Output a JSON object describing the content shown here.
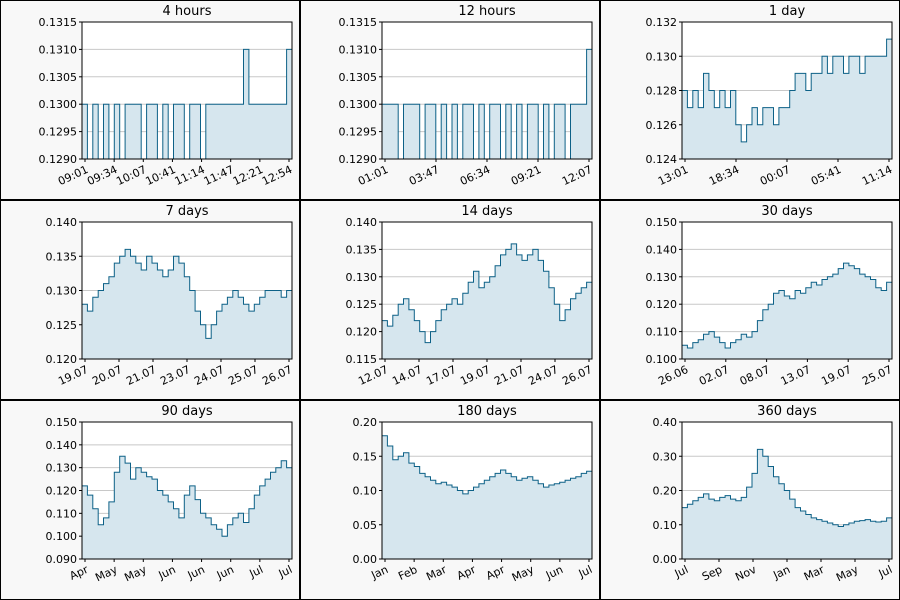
{
  "chart_data": [
    {
      "type": "area",
      "title": "4 hours",
      "ylim": [
        0.129,
        0.1315
      ],
      "yticks": [
        "0.1290",
        "0.1295",
        "0.1300",
        "0.1305",
        "0.1310",
        "0.1315"
      ],
      "xticks": [
        "09:01",
        "09:34",
        "10:07",
        "10:41",
        "11:14",
        "11:47",
        "12:21",
        "12:54"
      ],
      "values": [
        0.13,
        0.129,
        0.13,
        0.129,
        0.13,
        0.129,
        0.13,
        0.129,
        0.13,
        0.13,
        0.13,
        0.129,
        0.13,
        0.13,
        0.129,
        0.13,
        0.129,
        0.13,
        0.13,
        0.129,
        0.13,
        0.13,
        0.129,
        0.13,
        0.13,
        0.13,
        0.13,
        0.13,
        0.13,
        0.13,
        0.131,
        0.13,
        0.13,
        0.13,
        0.13,
        0.13,
        0.13,
        0.13,
        0.131,
        0.131
      ]
    },
    {
      "type": "area",
      "title": "12 hours",
      "ylim": [
        0.129,
        0.1315
      ],
      "yticks": [
        "0.1290",
        "0.1295",
        "0.1300",
        "0.1305",
        "0.1310",
        "0.1315"
      ],
      "xticks": [
        "01:01",
        "03:47",
        "06:34",
        "09:21",
        "12:07"
      ],
      "values": [
        0.13,
        0.13,
        0.13,
        0.129,
        0.13,
        0.13,
        0.13,
        0.129,
        0.13,
        0.13,
        0.129,
        0.13,
        0.129,
        0.13,
        0.129,
        0.13,
        0.13,
        0.129,
        0.13,
        0.129,
        0.13,
        0.13,
        0.129,
        0.13,
        0.129,
        0.13,
        0.129,
        0.13,
        0.13,
        0.129,
        0.13,
        0.129,
        0.13,
        0.13,
        0.129,
        0.13,
        0.13,
        0.13,
        0.131,
        0.131
      ]
    },
    {
      "type": "area",
      "title": "1 day",
      "ylim": [
        0.124,
        0.132
      ],
      "yticks": [
        "0.124",
        "0.126",
        "0.128",
        "0.130",
        "0.132"
      ],
      "xticks": [
        "13:01",
        "18:34",
        "00:07",
        "05:41",
        "11:14"
      ],
      "values": [
        0.128,
        0.127,
        0.128,
        0.127,
        0.129,
        0.128,
        0.127,
        0.128,
        0.127,
        0.128,
        0.126,
        0.125,
        0.126,
        0.127,
        0.126,
        0.127,
        0.127,
        0.126,
        0.127,
        0.127,
        0.128,
        0.129,
        0.129,
        0.128,
        0.129,
        0.129,
        0.13,
        0.129,
        0.13,
        0.13,
        0.129,
        0.13,
        0.13,
        0.129,
        0.13,
        0.13,
        0.13,
        0.13,
        0.131,
        0.131
      ]
    },
    {
      "type": "area",
      "title": "7 days",
      "ylim": [
        0.12,
        0.14
      ],
      "yticks": [
        "0.120",
        "0.125",
        "0.130",
        "0.135",
        "0.140"
      ],
      "xticks": [
        "19.07",
        "20.07",
        "21.07",
        "23.07",
        "24.07",
        "25.07",
        "26.07"
      ],
      "values": [
        0.128,
        0.127,
        0.129,
        0.13,
        0.131,
        0.132,
        0.134,
        0.135,
        0.136,
        0.135,
        0.134,
        0.133,
        0.135,
        0.134,
        0.133,
        0.132,
        0.133,
        0.135,
        0.134,
        0.132,
        0.13,
        0.127,
        0.125,
        0.123,
        0.125,
        0.127,
        0.128,
        0.129,
        0.13,
        0.129,
        0.128,
        0.127,
        0.128,
        0.129,
        0.13,
        0.13,
        0.13,
        0.129,
        0.13,
        0.131
      ]
    },
    {
      "type": "area",
      "title": "14 days",
      "ylim": [
        0.115,
        0.14
      ],
      "yticks": [
        "0.115",
        "0.120",
        "0.125",
        "0.130",
        "0.135",
        "0.140"
      ],
      "xticks": [
        "12.07",
        "14.07",
        "17.07",
        "19.07",
        "21.07",
        "24.07",
        "26.07"
      ],
      "values": [
        0.122,
        0.121,
        0.123,
        0.125,
        0.126,
        0.124,
        0.122,
        0.12,
        0.118,
        0.12,
        0.122,
        0.124,
        0.125,
        0.126,
        0.125,
        0.127,
        0.129,
        0.131,
        0.128,
        0.129,
        0.13,
        0.132,
        0.134,
        0.135,
        0.136,
        0.134,
        0.133,
        0.134,
        0.135,
        0.133,
        0.131,
        0.128,
        0.125,
        0.122,
        0.124,
        0.126,
        0.127,
        0.128,
        0.129,
        0.131
      ]
    },
    {
      "type": "area",
      "title": "30 days",
      "ylim": [
        0.1,
        0.15
      ],
      "yticks": [
        "0.100",
        "0.110",
        "0.120",
        "0.130",
        "0.140",
        "0.150"
      ],
      "xticks": [
        "26.06",
        "02.07",
        "08.07",
        "13.07",
        "19.07",
        "25.07"
      ],
      "values": [
        0.105,
        0.104,
        0.106,
        0.107,
        0.109,
        0.11,
        0.108,
        0.106,
        0.104,
        0.106,
        0.107,
        0.109,
        0.108,
        0.11,
        0.114,
        0.118,
        0.12,
        0.124,
        0.125,
        0.123,
        0.122,
        0.125,
        0.124,
        0.126,
        0.128,
        0.127,
        0.129,
        0.13,
        0.131,
        0.133,
        0.135,
        0.134,
        0.133,
        0.131,
        0.13,
        0.129,
        0.126,
        0.125,
        0.128,
        0.131
      ]
    },
    {
      "type": "area",
      "title": "90 days",
      "ylim": [
        0.09,
        0.15
      ],
      "yticks": [
        "0.090",
        "0.100",
        "0.110",
        "0.120",
        "0.130",
        "0.140",
        "0.150"
      ],
      "xticks": [
        "Apr",
        "May",
        "May",
        "Jun",
        "Jun",
        "Jun",
        "Jul",
        "Jul"
      ],
      "values": [
        0.122,
        0.118,
        0.112,
        0.105,
        0.108,
        0.115,
        0.128,
        0.135,
        0.132,
        0.125,
        0.13,
        0.128,
        0.126,
        0.125,
        0.12,
        0.118,
        0.115,
        0.112,
        0.108,
        0.118,
        0.122,
        0.116,
        0.11,
        0.108,
        0.105,
        0.103,
        0.1,
        0.105,
        0.108,
        0.11,
        0.106,
        0.112,
        0.118,
        0.122,
        0.125,
        0.128,
        0.13,
        0.133,
        0.13,
        0.131
      ]
    },
    {
      "type": "area",
      "title": "180 days",
      "ylim": [
        0,
        0.2
      ],
      "yticks": [
        "0.00",
        "0.05",
        "0.10",
        "0.15",
        "0.20"
      ],
      "xticks": [
        "Jan",
        "Feb",
        "Mar",
        "Apr",
        "Apr",
        "May",
        "Jun",
        "Jul"
      ],
      "values": [
        0.18,
        0.165,
        0.145,
        0.15,
        0.155,
        0.14,
        0.135,
        0.125,
        0.12,
        0.115,
        0.11,
        0.112,
        0.108,
        0.105,
        0.1,
        0.095,
        0.1,
        0.105,
        0.11,
        0.115,
        0.12,
        0.125,
        0.13,
        0.125,
        0.12,
        0.115,
        0.118,
        0.12,
        0.115,
        0.11,
        0.105,
        0.108,
        0.11,
        0.112,
        0.115,
        0.118,
        0.12,
        0.125,
        0.128,
        0.13
      ]
    },
    {
      "type": "area",
      "title": "360 days",
      "ylim": [
        0,
        0.4
      ],
      "yticks": [
        "0.00",
        "0.10",
        "0.20",
        "0.30",
        "0.40"
      ],
      "xticks": [
        "Jul",
        "Sep",
        "Nov",
        "Jan",
        "Mar",
        "May",
        "Jul"
      ],
      "values": [
        0.15,
        0.16,
        0.17,
        0.18,
        0.19,
        0.175,
        0.17,
        0.18,
        0.185,
        0.175,
        0.17,
        0.18,
        0.21,
        0.25,
        0.32,
        0.3,
        0.27,
        0.24,
        0.22,
        0.2,
        0.175,
        0.15,
        0.14,
        0.13,
        0.12,
        0.115,
        0.11,
        0.105,
        0.1,
        0.095,
        0.1,
        0.105,
        0.11,
        0.112,
        0.115,
        0.11,
        0.108,
        0.11,
        0.12,
        0.125
      ]
    }
  ]
}
